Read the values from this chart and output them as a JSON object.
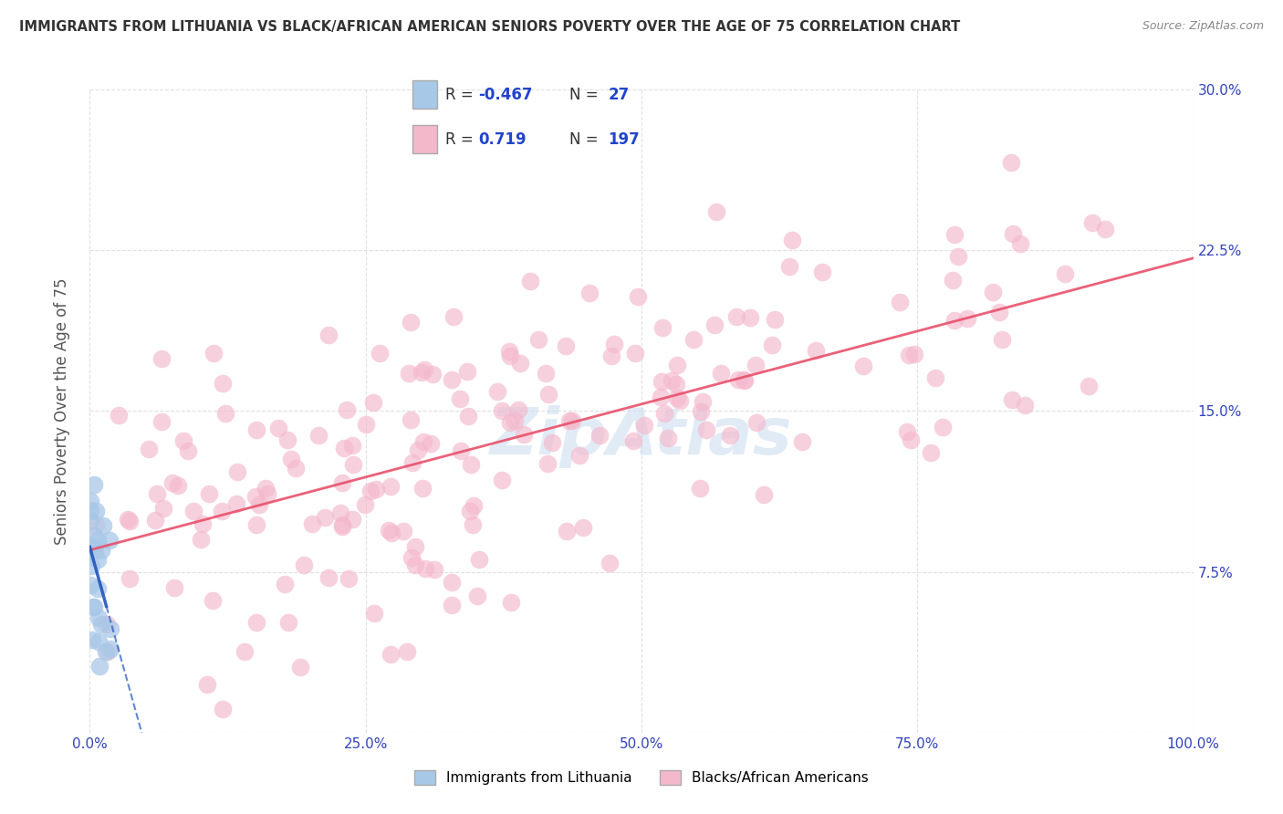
{
  "title": "IMMIGRANTS FROM LITHUANIA VS BLACK/AFRICAN AMERICAN SENIORS POVERTY OVER THE AGE OF 75 CORRELATION CHART",
  "source": "Source: ZipAtlas.com",
  "ylabel": "Seniors Poverty Over the Age of 75",
  "xlim": [
    0.0,
    1.0
  ],
  "ylim": [
    0.0,
    0.3
  ],
  "xticks": [
    0.0,
    0.25,
    0.5,
    0.75,
    1.0
  ],
  "xtick_labels": [
    "0.0%",
    "25.0%",
    "50.0%",
    "75.0%",
    "100.0%"
  ],
  "yticks": [
    0.0,
    0.075,
    0.15,
    0.225,
    0.3
  ],
  "ytick_labels": [
    "",
    "7.5%",
    "15.0%",
    "22.5%",
    "30.0%"
  ],
  "legend_labels": [
    "Immigrants from Lithuania",
    "Blacks/African Americans"
  ],
  "legend_R": [
    "-0.467",
    "0.719"
  ],
  "legend_N": [
    "27",
    "197"
  ],
  "watermark": "ZipAtlas",
  "blue_scatter_color": "#a8c8e8",
  "blue_scatter_edge": "#7bafd4",
  "pink_scatter_color": "#f4b8cb",
  "pink_scatter_edge": "#f090aa",
  "blue_line_color": "#2255bb",
  "pink_line_color": "#e8506a",
  "background_color": "#ffffff",
  "grid_color": "#cccccc",
  "title_color": "#333333",
  "axis_label_color": "#555555",
  "tick_color": "#3344bb",
  "legend_text_color": "#2244cc",
  "source_color": "#888888",
  "watermark_color": "#c5d8ee",
  "seed_blue": 77,
  "seed_pink": 55
}
